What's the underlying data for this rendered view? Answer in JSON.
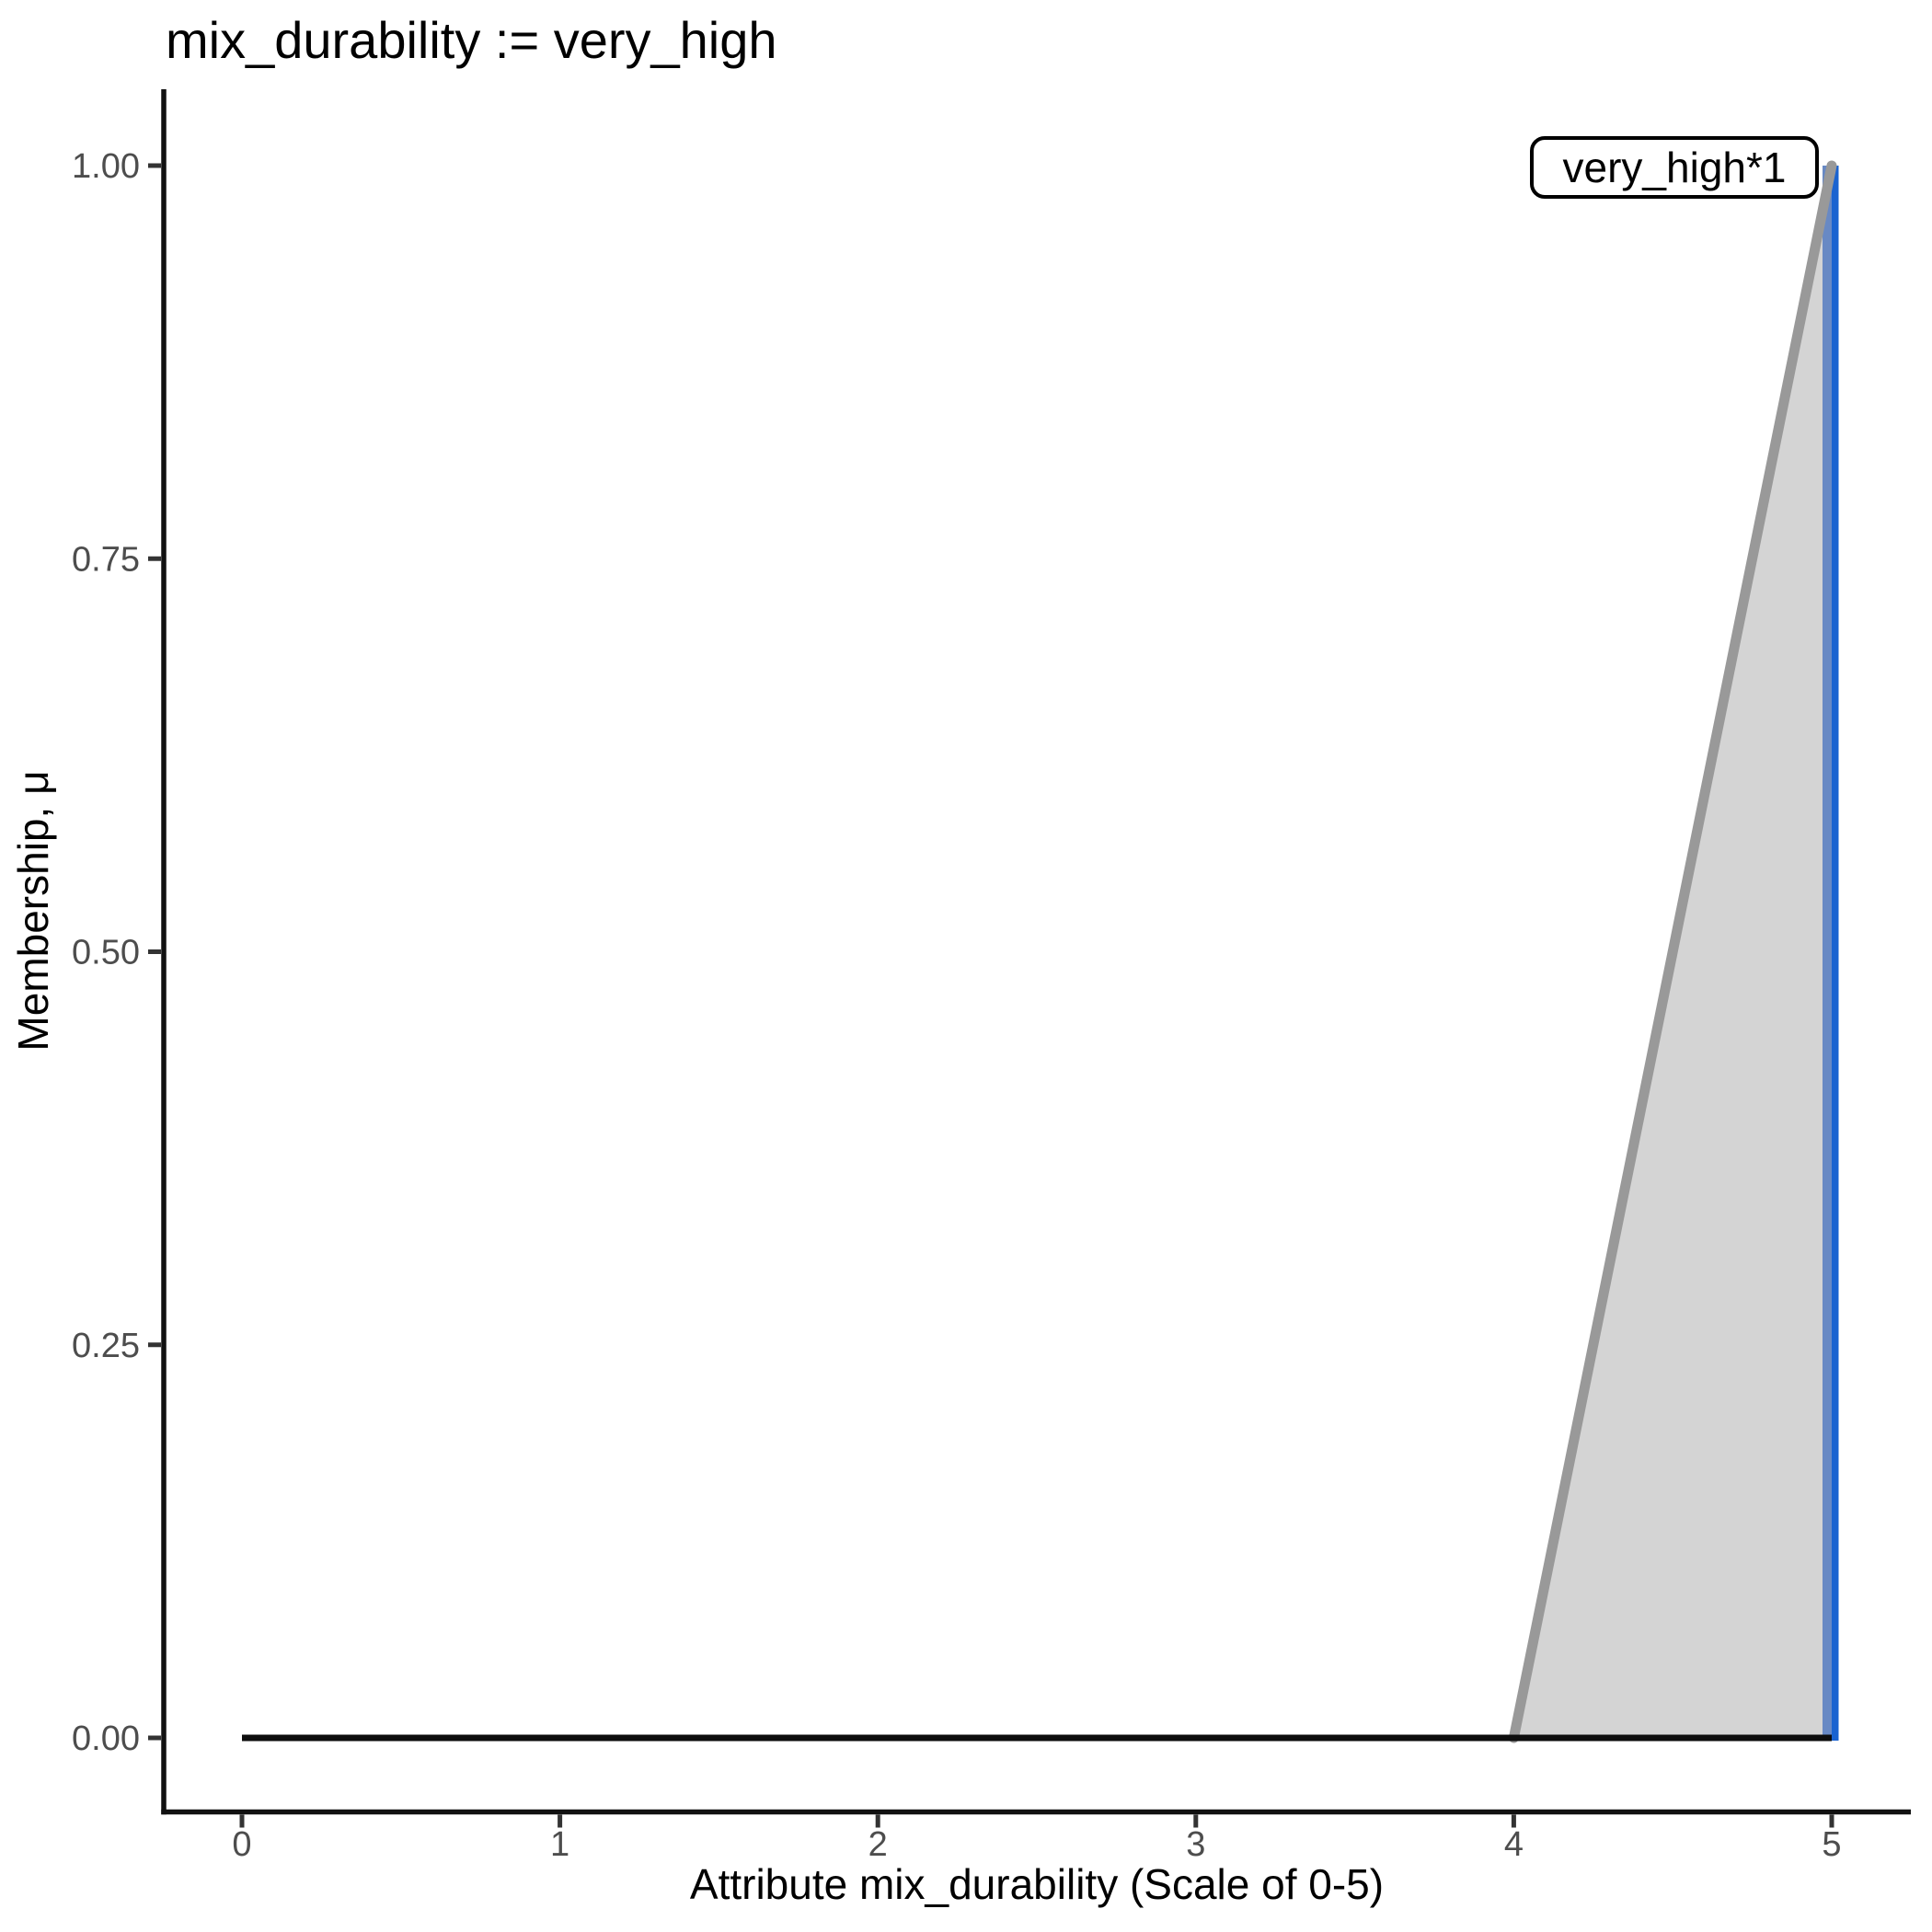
{
  "chart_data": {
    "type": "area",
    "title": "mix_durability := very_high",
    "xlabel": "Attribute mix_durability (Scale of 0-5)",
    "ylabel": "Membership, μ",
    "xlim": [
      0,
      5
    ],
    "ylim": [
      0,
      1
    ],
    "grid": false,
    "xticks": [
      {
        "value": 0,
        "label": "0"
      },
      {
        "value": 1,
        "label": "1"
      },
      {
        "value": 2,
        "label": "2"
      },
      {
        "value": 3,
        "label": "3"
      },
      {
        "value": 4,
        "label": "4"
      },
      {
        "value": 5,
        "label": "5"
      }
    ],
    "yticks": [
      {
        "value": 0.0,
        "label": "0.00"
      },
      {
        "value": 0.25,
        "label": "0.25"
      },
      {
        "value": 0.5,
        "label": "0.50"
      },
      {
        "value": 0.75,
        "label": "0.75"
      },
      {
        "value": 1.0,
        "label": "1.00"
      }
    ],
    "series": [
      {
        "name": "zero_baseline",
        "kind": "line",
        "points": [
          [
            0,
            0
          ],
          [
            5,
            0
          ]
        ],
        "color": "#0d0d0d",
        "width": 7
      },
      {
        "name": "very_high_membership",
        "kind": "area",
        "outline": [
          [
            4,
            0
          ],
          [
            5,
            1
          ]
        ],
        "close_points": [
          [
            5,
            0
          ]
        ],
        "fill": "#d4d4d4",
        "stroke": "#999999",
        "stroke_width": 11
      },
      {
        "name": "defuzzified_value",
        "kind": "vline",
        "x": 5,
        "from": 0,
        "to": 1,
        "color": "#1a63d0",
        "overlap_color": "#6889c4"
      }
    ],
    "annotation": {
      "label": "very_high*1"
    },
    "colors": {
      "axis_line": "#111111",
      "tick_mark": "#333333",
      "tick_label": "#4d4d4d",
      "membership_fill": "#d4d4d4",
      "membership_stroke": "#999999",
      "crisp_line_blue": "#1a63d0",
      "crisp_line_overlap": "#6889c4",
      "baseline_black": "#0d0d0d"
    }
  }
}
